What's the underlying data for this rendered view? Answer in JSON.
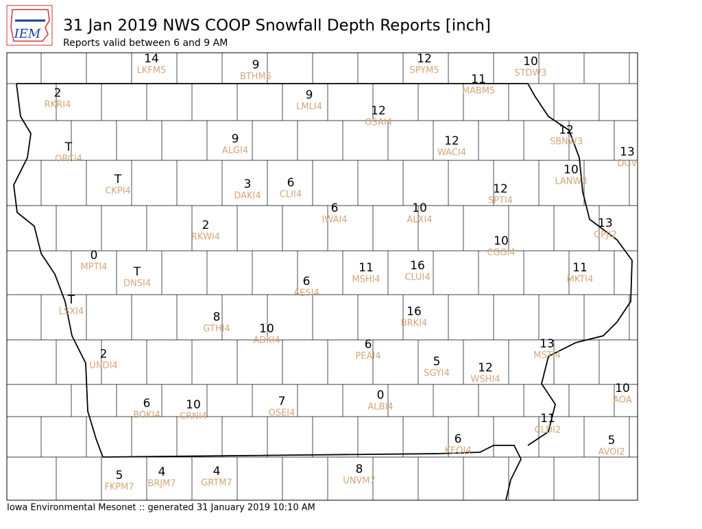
{
  "header": {
    "logo": "IEM",
    "title": "31 Jan 2019 NWS COOP Snowfall Depth Reports [inch]",
    "subtitle": "Reports valid between 6 and 9 AM"
  },
  "stations": [
    {
      "value": 14,
      "id": "LKFM5"
    },
    {
      "value": 9,
      "id": "BTHM5"
    },
    {
      "value": 12,
      "id": "SPYM5"
    },
    {
      "value": 10,
      "id": "STDW3"
    },
    {
      "value": 11,
      "id": "MABM5"
    },
    {
      "value": 2,
      "id": "RKRI4"
    },
    {
      "value": 9,
      "id": "LMLI4"
    },
    {
      "value": 12,
      "id": "OSAI4"
    },
    {
      "value": 12,
      "id": "SBNW3"
    },
    {
      "value": 13,
      "id": "DGV"
    },
    {
      "value": "T",
      "id": "ORCI4"
    },
    {
      "value": 9,
      "id": "ALGI4"
    },
    {
      "value": 12,
      "id": "WACI4"
    },
    {
      "value": 10,
      "id": "LANW3"
    },
    {
      "value": "T",
      "id": "CKPI4"
    },
    {
      "value": 3,
      "id": "DAKI4"
    },
    {
      "value": 6,
      "id": "CLII4"
    },
    {
      "value": 12,
      "id": "SPTI4"
    },
    {
      "value": 6,
      "id": "IWAI4"
    },
    {
      "value": 10,
      "id": "ALXI4"
    },
    {
      "value": 2,
      "id": "RKWI4"
    },
    {
      "value": 13,
      "id": "GPJI2"
    },
    {
      "value": 10,
      "id": "CGGI4"
    },
    {
      "value": 0,
      "id": "MPTI4"
    },
    {
      "value": "T",
      "id": "DNSI4"
    },
    {
      "value": 11,
      "id": "MSHI4"
    },
    {
      "value": 16,
      "id": "CLUI4"
    },
    {
      "value": 11,
      "id": "MKTI4"
    },
    {
      "value": 6,
      "id": "AESI4"
    },
    {
      "value": "T",
      "id": "LSXI4"
    },
    {
      "value": 8,
      "id": "GTHI4"
    },
    {
      "value": 10,
      "id": "ADKI4"
    },
    {
      "value": 16,
      "id": "BRKI4"
    },
    {
      "value": 6,
      "id": "PEAI4"
    },
    {
      "value": 13,
      "id": "MSTI4"
    },
    {
      "value": 2,
      "id": "UNDI4"
    },
    {
      "value": 5,
      "id": "SGYI4"
    },
    {
      "value": 12,
      "id": "WSHI4"
    },
    {
      "value": 10,
      "id": "AOA"
    },
    {
      "value": 6,
      "id": "BOKI4"
    },
    {
      "value": 10,
      "id": "CRNI4"
    },
    {
      "value": 7,
      "id": "OSEI4"
    },
    {
      "value": 0,
      "id": "ALBI4"
    },
    {
      "value": 11,
      "id": "CLDI2"
    },
    {
      "value": 5,
      "id": "AVOI2"
    },
    {
      "value": 6,
      "id": "KEOI4"
    },
    {
      "value": 5,
      "id": "FKPM7"
    },
    {
      "value": 4,
      "id": "BRJM7"
    },
    {
      "value": 4,
      "id": "GRTM7"
    },
    {
      "value": 8,
      "id": "UNVM7"
    }
  ],
  "footer": "Iowa Environmental Mesonet :: generated 31 January 2019 10:10 AM"
}
